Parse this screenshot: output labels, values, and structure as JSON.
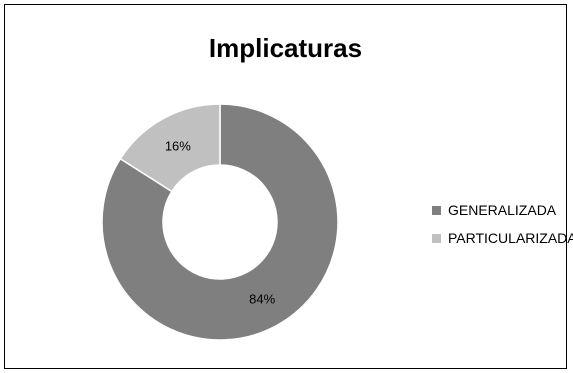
{
  "chart_data": {
    "type": "pie",
    "variant": "doughnut",
    "title": "Implicaturas",
    "categories": [
      "GENERALIZADA",
      "PARTICULARIZADA"
    ],
    "values": [
      84,
      16
    ],
    "data_labels": [
      "84%",
      "16%"
    ],
    "colors": [
      "#7f7f7f",
      "#c0c0c0"
    ],
    "legend_position": "right"
  }
}
